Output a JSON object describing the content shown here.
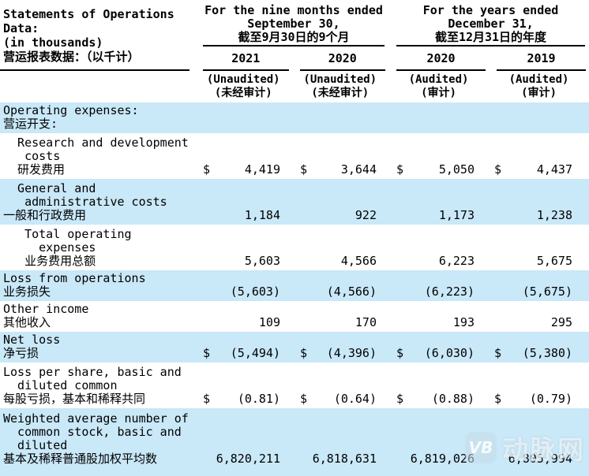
{
  "header": {
    "label_lines": [
      "Statements of Operations",
      "Data:",
      "(in thousands)",
      "营运报表数据：（以千计）"
    ],
    "groups": [
      {
        "line1": "For the nine months ended",
        "line2": "September 30,",
        "line3": "截至9月30日的9个月",
        "years": [
          {
            "year": "2021",
            "audit_en": "(Unaudited)",
            "audit_zh": "(未经审计)"
          },
          {
            "year": "2020",
            "audit_en": "(Unaudited)",
            "audit_zh": "(未经审计)"
          }
        ]
      },
      {
        "line1": "For the years ended",
        "line2": "December 31,",
        "line3": "截至12月31日的年度",
        "years": [
          {
            "year": "2020",
            "audit_en": "(Audited)",
            "audit_zh": "(审计)"
          },
          {
            "year": "2019",
            "audit_en": "(Audited)",
            "audit_zh": "(审计)"
          }
        ]
      }
    ]
  },
  "rows": [
    {
      "label_lines": [
        "Operating expenses:",
        "营运开支:"
      ],
      "cells": [
        {
          "d": "",
          "v": ""
        },
        {
          "d": "",
          "v": ""
        },
        {
          "d": "",
          "v": ""
        },
        {
          "d": "",
          "v": ""
        }
      ]
    },
    {
      "label_lines": [
        "  Research and development",
        "   costs",
        "  研发费用"
      ],
      "cells": [
        {
          "d": "$",
          "v": "4,419"
        },
        {
          "d": "$",
          "v": "3,644"
        },
        {
          "d": "$",
          "v": "5,050"
        },
        {
          "d": "$",
          "v": "4,437"
        }
      ]
    },
    {
      "label_lines": [
        "  General and",
        "   administrative costs",
        "一般和行政费用"
      ],
      "cells": [
        {
          "d": "",
          "v": "1,184"
        },
        {
          "d": "",
          "v": "922"
        },
        {
          "d": "",
          "v": "1,173"
        },
        {
          "d": "",
          "v": "1,238"
        }
      ]
    },
    {
      "label_lines": [
        "   Total operating",
        "     expenses",
        "   业务费用总额"
      ],
      "cells": [
        {
          "d": "",
          "v": "5,603"
        },
        {
          "d": "",
          "v": "4,566"
        },
        {
          "d": "",
          "v": "6,223"
        },
        {
          "d": "",
          "v": "5,675"
        }
      ]
    },
    {
      "label_lines": [
        "Loss from operations",
        "业务损失"
      ],
      "cells": [
        {
          "d": "",
          "v": "(5,603)"
        },
        {
          "d": "",
          "v": "(4,566)"
        },
        {
          "d": "",
          "v": "(6,223)"
        },
        {
          "d": "",
          "v": "(5,675)"
        }
      ]
    },
    {
      "label_lines": [
        "Other income",
        "其他收入"
      ],
      "cells": [
        {
          "d": "",
          "v": "109"
        },
        {
          "d": "",
          "v": "170"
        },
        {
          "d": "",
          "v": "193"
        },
        {
          "d": "",
          "v": "295"
        }
      ]
    },
    {
      "label_lines": [
        "Net loss",
        "净亏损"
      ],
      "cells": [
        {
          "d": "$",
          "v": "(5,494)"
        },
        {
          "d": "$",
          "v": "(4,396)"
        },
        {
          "d": "$",
          "v": "(6,030)"
        },
        {
          "d": "$",
          "v": "(5,380)"
        }
      ]
    },
    {
      "label_lines": [
        "Loss per share, basic and",
        "  diluted common",
        "每股亏损，基本和稀释共同"
      ],
      "cells": [
        {
          "d": "$",
          "v": "(0.81)"
        },
        {
          "d": "$",
          "v": "(0.64)"
        },
        {
          "d": "$",
          "v": "(0.88)"
        },
        {
          "d": "$",
          "v": "(0.79)"
        }
      ]
    },
    {
      "label_lines": [
        "Weighted average number of",
        "  common stock, basic and",
        "  diluted",
        "基本及稀释普通股加权平均数"
      ],
      "cells": [
        {
          "d": "",
          "v": "6,820,211"
        },
        {
          "d": "",
          "v": "6,818,631"
        },
        {
          "d": "",
          "v": "6,819,026"
        },
        {
          "d": "",
          "v": "6,805,994"
        }
      ]
    }
  ],
  "watermark": {
    "logo": "VB",
    "text": "动脉网"
  },
  "colors": {
    "row_highlight": "#C9E8F8",
    "rule": "#000000",
    "text": "#000000"
  }
}
